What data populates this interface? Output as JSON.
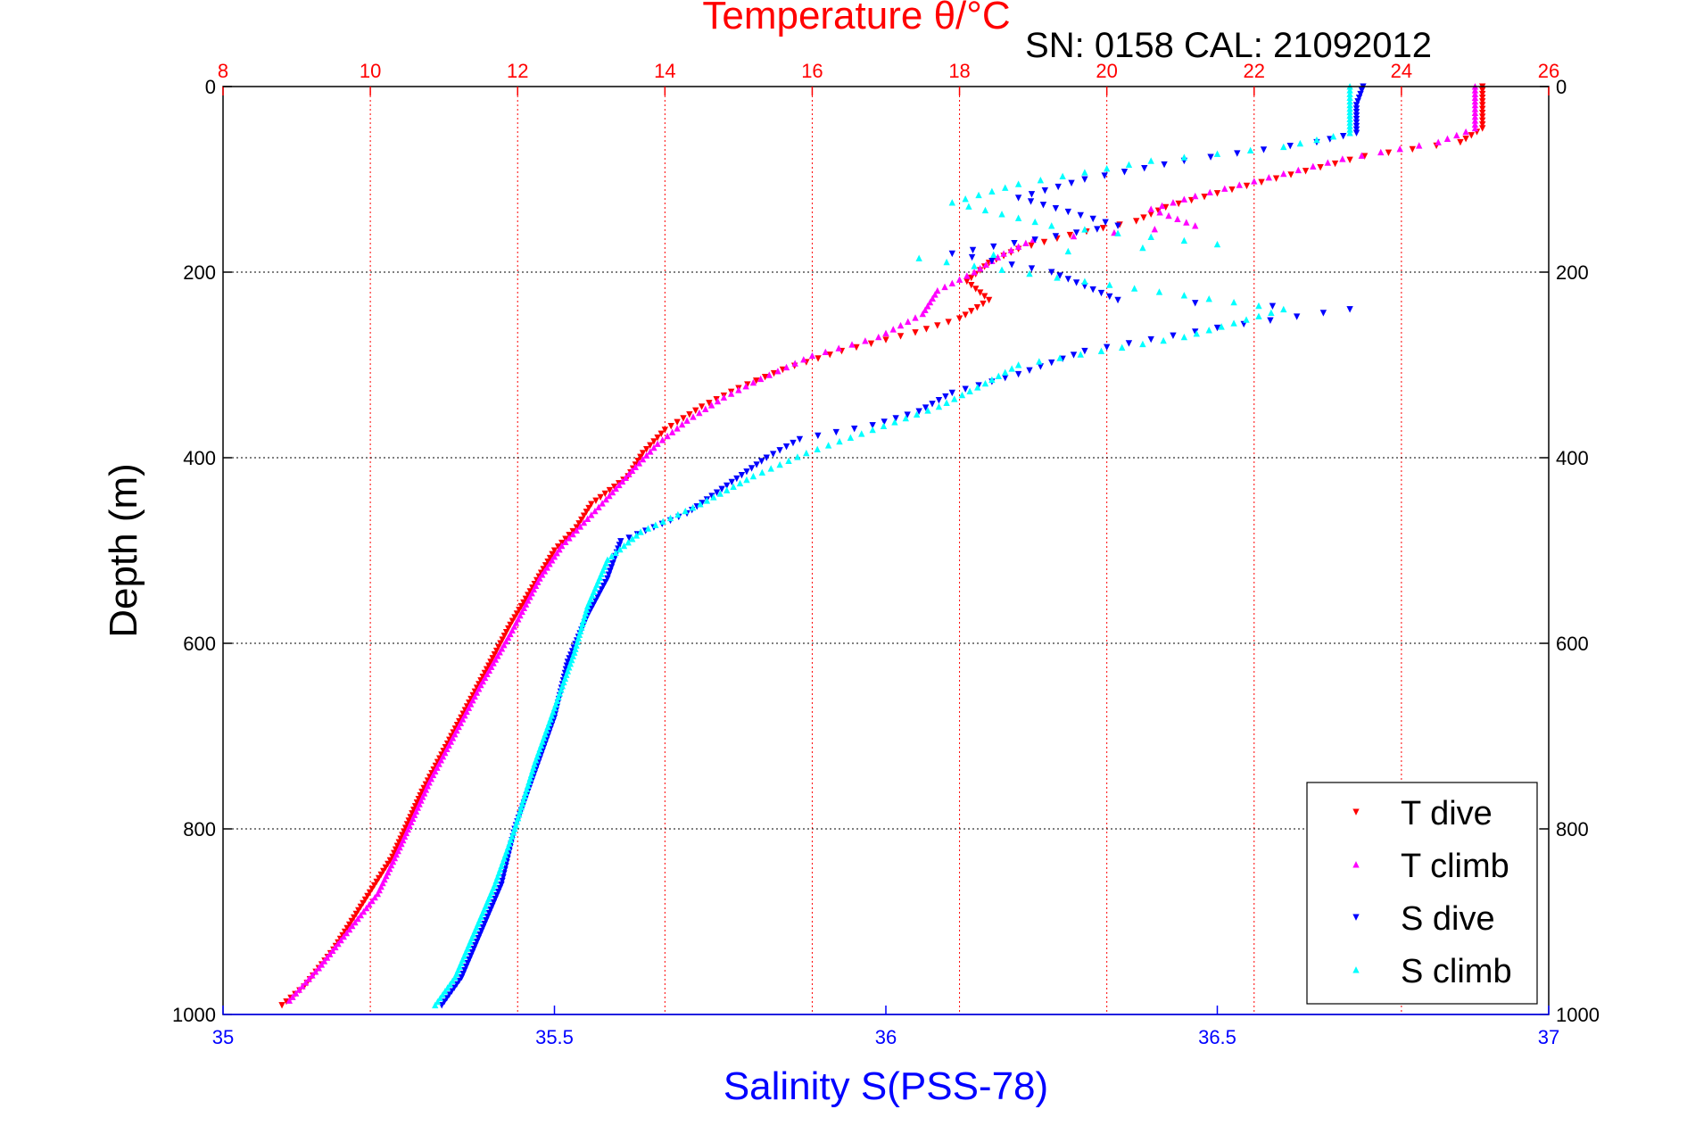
{
  "chart_data": {
    "type": "scatter",
    "title": "Temperature θ/°C",
    "subtitle": "SN: 0158  CAL: 21092012",
    "ylabel": "Depth (m)",
    "xlabel_bottom": "Salinity S(PSS-78)",
    "xlabel_top": "Temperature θ/°C",
    "ylim": [
      0,
      1000
    ],
    "y_reversed": true,
    "y_ticks": [
      0,
      200,
      400,
      600,
      800,
      1000
    ],
    "x_bottom": {
      "lim": [
        35,
        37
      ],
      "ticks": [
        35,
        35.5,
        36,
        36.5,
        37
      ],
      "tick_labels": [
        "35",
        "35.5",
        "36",
        "36.5",
        "37"
      ]
    },
    "x_top": {
      "lim": [
        8,
        26
      ],
      "ticks": [
        8,
        10,
        12,
        14,
        16,
        18,
        20,
        22,
        24,
        26
      ],
      "tick_labels": [
        "8",
        "10",
        "12",
        "14",
        "16",
        "18",
        "20",
        "22",
        "24",
        "26"
      ]
    },
    "grid": true,
    "legend_position": "bottom-right",
    "colors": {
      "t_dive": "#ff0000",
      "t_climb": "#ff00ff",
      "s_dive": "#0000ff",
      "s_climb": "#00ffff",
      "grid": "#ff0000"
    },
    "series": [
      {
        "name": "T dive",
        "axis": "top",
        "marker": "triangle-down",
        "color": "#ff0000",
        "points": [
          [
            25.1,
            0
          ],
          [
            25.1,
            20
          ],
          [
            25.1,
            45
          ],
          [
            24.8,
            60
          ],
          [
            23.5,
            75
          ],
          [
            22.5,
            95
          ],
          [
            21.5,
            115
          ],
          [
            20.8,
            130
          ],
          [
            20.4,
            145
          ],
          [
            19.5,
            160
          ],
          [
            18.8,
            175
          ],
          [
            18.4,
            190
          ],
          [
            18.1,
            210
          ],
          [
            18.4,
            230
          ],
          [
            18.0,
            250
          ],
          [
            17.4,
            265
          ],
          [
            16.4,
            285
          ],
          [
            15.6,
            305
          ],
          [
            15.0,
            325
          ],
          [
            14.5,
            345
          ],
          [
            14.0,
            370
          ],
          [
            13.7,
            395
          ],
          [
            13.5,
            420
          ],
          [
            13.0,
            450
          ],
          [
            12.8,
            475
          ],
          [
            12.5,
            500
          ],
          [
            12.2,
            540
          ],
          [
            11.9,
            580
          ],
          [
            11.5,
            640
          ],
          [
            11.1,
            700
          ],
          [
            10.7,
            760
          ],
          [
            10.3,
            830
          ],
          [
            9.9,
            880
          ],
          [
            9.5,
            930
          ],
          [
            9.1,
            970
          ],
          [
            8.8,
            990
          ]
        ]
      },
      {
        "name": "T climb",
        "axis": "top",
        "marker": "triangle-up",
        "color": "#ff00ff",
        "points": [
          [
            25.0,
            0
          ],
          [
            25.0,
            20
          ],
          [
            25.0,
            45
          ],
          [
            24.5,
            60
          ],
          [
            23.2,
            78
          ],
          [
            22.2,
            98
          ],
          [
            21.2,
            118
          ],
          [
            20.6,
            132
          ],
          [
            21.2,
            150
          ],
          [
            19.0,
            165
          ],
          [
            18.6,
            180
          ],
          [
            18.2,
            200
          ],
          [
            17.7,
            220
          ],
          [
            17.5,
            245
          ],
          [
            16.9,
            270
          ],
          [
            16.0,
            290
          ],
          [
            15.3,
            315
          ],
          [
            14.8,
            335
          ],
          [
            14.3,
            360
          ],
          [
            13.9,
            385
          ],
          [
            13.6,
            410
          ],
          [
            13.2,
            445
          ],
          [
            12.9,
            470
          ],
          [
            12.6,
            495
          ],
          [
            12.3,
            530
          ],
          [
            11.9,
            590
          ],
          [
            11.5,
            645
          ],
          [
            11.2,
            690
          ],
          [
            10.8,
            750
          ],
          [
            10.4,
            820
          ],
          [
            10.1,
            870
          ],
          [
            9.6,
            920
          ],
          [
            9.3,
            950
          ],
          [
            8.9,
            985
          ]
        ]
      },
      {
        "name": "S dive",
        "axis": "bottom",
        "marker": "triangle-down",
        "color": "#0000ff",
        "points": [
          [
            36.72,
            0
          ],
          [
            36.71,
            20
          ],
          [
            36.71,
            50
          ],
          [
            36.65,
            60
          ],
          [
            36.45,
            80
          ],
          [
            36.3,
            100
          ],
          [
            36.2,
            120
          ],
          [
            36.35,
            150
          ],
          [
            36.1,
            180
          ],
          [
            36.25,
            200
          ],
          [
            36.35,
            230
          ],
          [
            36.7,
            240
          ],
          [
            36.5,
            260
          ],
          [
            36.3,
            285
          ],
          [
            36.2,
            310
          ],
          [
            36.1,
            330
          ],
          [
            36.05,
            350
          ],
          [
            35.98,
            365
          ],
          [
            35.87,
            380
          ],
          [
            35.82,
            400
          ],
          [
            35.76,
            430
          ],
          [
            35.7,
            460
          ],
          [
            35.6,
            490
          ],
          [
            35.58,
            530
          ],
          [
            35.55,
            570
          ],
          [
            35.52,
            620
          ],
          [
            35.5,
            680
          ],
          [
            35.47,
            740
          ],
          [
            35.44,
            800
          ],
          [
            35.42,
            860
          ],
          [
            35.39,
            910
          ],
          [
            35.36,
            960
          ],
          [
            35.33,
            990
          ]
        ]
      },
      {
        "name": "S climb",
        "axis": "bottom",
        "marker": "triangle-up",
        "color": "#00ffff",
        "points": [
          [
            36.7,
            0
          ],
          [
            36.7,
            20
          ],
          [
            36.7,
            50
          ],
          [
            36.6,
            65
          ],
          [
            36.4,
            80
          ],
          [
            36.2,
            105
          ],
          [
            36.1,
            125
          ],
          [
            36.25,
            150
          ],
          [
            36.5,
            170
          ],
          [
            36.05,
            185
          ],
          [
            36.3,
            210
          ],
          [
            36.6,
            240
          ],
          [
            36.45,
            270
          ],
          [
            36.2,
            300
          ],
          [
            36.15,
            320
          ],
          [
            36.08,
            345
          ],
          [
            35.98,
            370
          ],
          [
            35.88,
            395
          ],
          [
            35.8,
            420
          ],
          [
            35.72,
            450
          ],
          [
            35.63,
            480
          ],
          [
            35.58,
            510
          ],
          [
            35.55,
            560
          ],
          [
            35.53,
            610
          ],
          [
            35.5,
            670
          ],
          [
            35.47,
            730
          ],
          [
            35.44,
            800
          ],
          [
            35.41,
            860
          ],
          [
            35.38,
            910
          ],
          [
            35.35,
            960
          ],
          [
            35.32,
            990
          ]
        ]
      }
    ]
  }
}
